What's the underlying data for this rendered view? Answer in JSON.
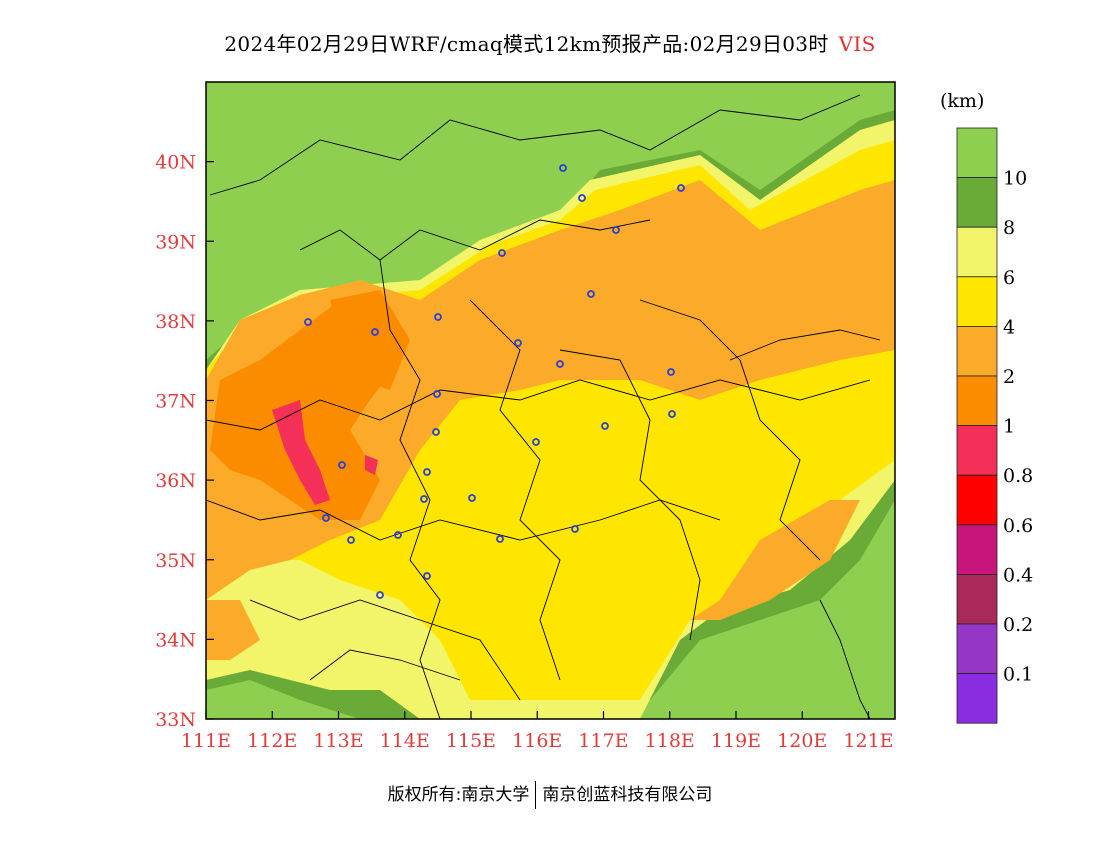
{
  "header": {
    "title": "2024年02月29日WRF/cmaq模式12km预报产品:02月29日03时",
    "variable": "VIS"
  },
  "map": {
    "x_ticks": [
      "111E",
      "112E",
      "113E",
      "114E",
      "115E",
      "116E",
      "117E",
      "118E",
      "119E",
      "120E",
      "121E"
    ],
    "y_ticks": [
      "33N",
      "34N",
      "35N",
      "36N",
      "37N",
      "38N",
      "39N",
      "40N"
    ],
    "extent": {
      "lon": [
        111,
        121.4
      ],
      "lat": [
        33,
        41
      ]
    }
  },
  "legend": {
    "unit": "(km)",
    "labels": [
      "10",
      "8",
      "6",
      "4",
      "2",
      "1",
      "0.8",
      "0.6",
      "0.4",
      "0.2",
      "0.1"
    ],
    "colors": [
      "#8ecf50",
      "#6aab38",
      "#f2f56a",
      "#ffe600",
      "#fbaa2a",
      "#fb8c00",
      "#f42f58",
      "#ff0000",
      "#c8157c",
      "#a92a5a",
      "#9636c8",
      "#8a2de0"
    ]
  },
  "footer": {
    "left": "版权所有:南京大学",
    "right": "南京创蓝科技有限公司"
  }
}
